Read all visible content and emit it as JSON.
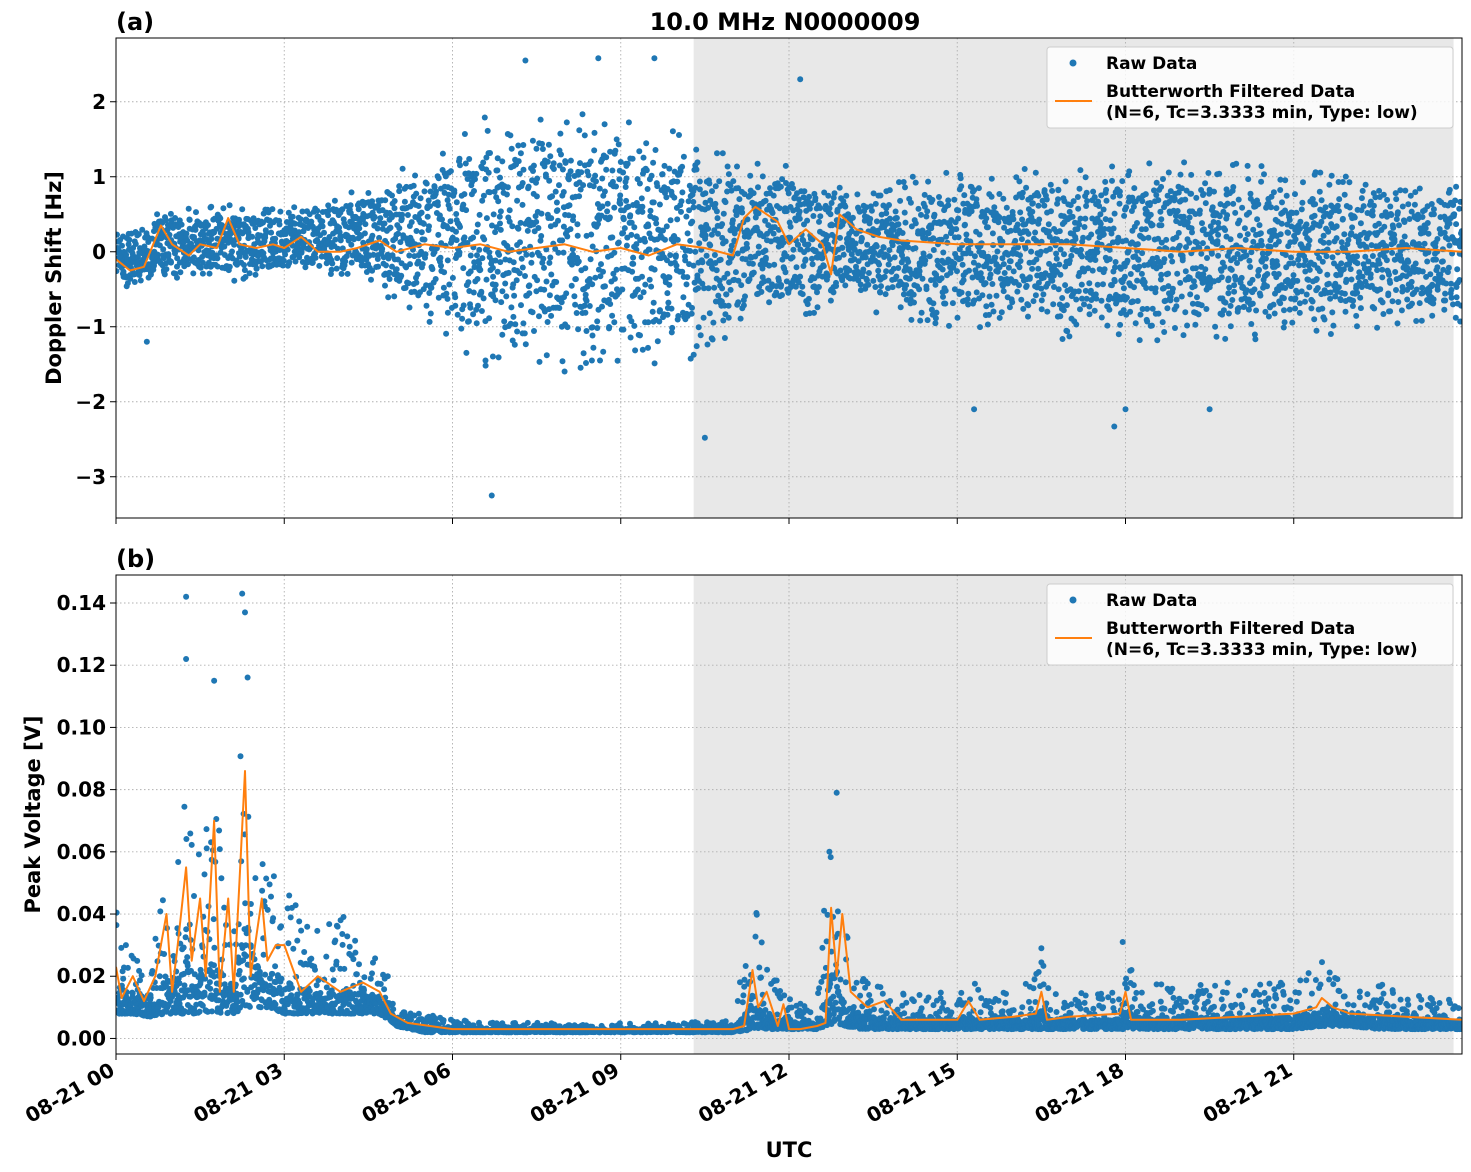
{
  "figure": {
    "title": "10.0 MHz N0000009",
    "xlabel": "UTC"
  },
  "chart_data": [
    {
      "type": "scatter",
      "panel_label": "(a)",
      "ylabel": "Doppler Shift [Hz]",
      "xlim_hours": [
        0,
        24
      ],
      "ylim": [
        -3.55,
        2.85
      ],
      "yticks": [
        -3,
        -2,
        -1,
        0,
        1,
        2
      ],
      "ytick_labels": [
        "−3",
        "−2",
        "−1",
        "0",
        "1",
        "2"
      ],
      "xticks_hours": [
        0,
        3,
        6,
        9,
        12,
        15,
        18,
        21
      ],
      "xtick_labels": [
        "08-21 00",
        "08-21 03",
        "08-21 06",
        "08-21 09",
        "08-21 12",
        "08-21 15",
        "08-21 18",
        "08-21 21"
      ],
      "grid": true,
      "shaded_interval_hours": [
        10.3,
        23.85
      ],
      "legend_placement": "top-right",
      "series": [
        {
          "name": "Raw Data",
          "kind": "scatter",
          "color": "#1f77b4",
          "envelope": {
            "x": [
              0,
              0.5,
              0.8,
              1.0,
              1.5,
              2.0,
              2.5,
              3.0,
              3.5,
              4.0,
              4.5,
              5.0,
              5.5,
              6.0,
              6.5,
              7.0,
              7.5,
              8.0,
              8.5,
              9.0,
              9.5,
              10.0,
              10.5,
              11.0,
              11.3,
              11.5,
              12.0,
              12.5,
              12.7,
              13.0,
              14.0,
              15.0,
              16.0,
              17.0,
              18.0,
              19.0,
              20.0,
              21.0,
              22.0,
              23.0,
              24.0
            ],
            "upper": [
              0.35,
              0.4,
              0.55,
              0.65,
              0.55,
              0.7,
              0.55,
              0.6,
              0.65,
              0.8,
              0.85,
              1.1,
              1.3,
              1.6,
              1.8,
              1.9,
              2.0,
              1.9,
              1.9,
              1.85,
              1.7,
              1.7,
              1.6,
              1.5,
              1.2,
              1.2,
              1.2,
              1.0,
              1.0,
              0.8,
              1.0,
              1.2,
              1.1,
              1.2,
              1.2,
              1.2,
              1.2,
              1.1,
              1.1,
              1.0,
              1.0
            ],
            "lower": [
              -0.45,
              -0.55,
              -0.5,
              -0.35,
              -0.35,
              -0.4,
              -0.35,
              -0.35,
              -0.3,
              -0.35,
              -0.4,
              -0.7,
              -1.0,
              -1.3,
              -1.5,
              -1.6,
              -1.6,
              -1.6,
              -1.6,
              -1.55,
              -1.5,
              -1.45,
              -1.4,
              -1.3,
              -1.0,
              -0.9,
              -0.9,
              -0.9,
              -0.9,
              -0.7,
              -0.9,
              -1.1,
              -1.0,
              -1.2,
              -1.2,
              -1.2,
              -1.2,
              -1.1,
              -1.1,
              -1.0,
              -1.0
            ]
          },
          "notable_points": [
            {
              "x": 0.55,
              "y": -1.2
            },
            {
              "x": 6.7,
              "y": -3.25
            },
            {
              "x": 7.3,
              "y": 2.55
            },
            {
              "x": 8.6,
              "y": 2.58
            },
            {
              "x": 9.6,
              "y": 2.58
            },
            {
              "x": 10.5,
              "y": -2.48
            },
            {
              "x": 12.2,
              "y": 2.3
            },
            {
              "x": 15.3,
              "y": -2.1
            },
            {
              "x": 17.8,
              "y": -2.33
            },
            {
              "x": 18.0,
              "y": -2.1
            },
            {
              "x": 19.5,
              "y": -2.1
            }
          ]
        },
        {
          "name": "Butterworth Filtered Data\n(N=6, Tc=3.3333 min, Type: low)",
          "kind": "line",
          "color": "#ff7f0e",
          "x": [
            0,
            0.25,
            0.5,
            0.8,
            1.0,
            1.3,
            1.5,
            1.8,
            2.0,
            2.2,
            2.5,
            2.8,
            3.0,
            3.3,
            3.6,
            4.0,
            4.3,
            4.7,
            5.0,
            5.5,
            6.0,
            6.5,
            7.0,
            7.5,
            8.0,
            8.5,
            9.0,
            9.5,
            10.0,
            10.5,
            11.0,
            11.2,
            11.4,
            11.6,
            11.8,
            12.0,
            12.3,
            12.6,
            12.75,
            12.9,
            13.2,
            13.6,
            14.0,
            15.0,
            16.0,
            17.0,
            18.0,
            19.0,
            20.0,
            21.0,
            22.0,
            23.0,
            24.0
          ],
          "y": [
            -0.1,
            -0.25,
            -0.2,
            0.35,
            0.1,
            -0.05,
            0.1,
            0.05,
            0.45,
            0.1,
            0.05,
            0.1,
            0.05,
            0.2,
            0.0,
            0.0,
            0.05,
            0.15,
            0.0,
            0.1,
            0.05,
            0.1,
            0.0,
            0.05,
            0.1,
            0.0,
            0.05,
            -0.05,
            0.1,
            0.05,
            -0.05,
            0.45,
            0.6,
            0.5,
            0.4,
            0.1,
            0.3,
            0.1,
            -0.3,
            0.5,
            0.3,
            0.2,
            0.15,
            0.1,
            0.1,
            0.1,
            0.05,
            0.0,
            0.05,
            0.0,
            0.0,
            0.05,
            0.0
          ]
        }
      ]
    },
    {
      "type": "scatter",
      "panel_label": "(b)",
      "ylabel": "Peak Voltage [V]",
      "xlim_hours": [
        0,
        24
      ],
      "ylim": [
        -0.005,
        0.149
      ],
      "yticks": [
        0,
        0.02,
        0.04,
        0.06,
        0.08,
        0.1,
        0.12,
        0.14
      ],
      "ytick_labels": [
        "0.00",
        "0.02",
        "0.04",
        "0.06",
        "0.08",
        "0.10",
        "0.12",
        "0.14"
      ],
      "xticks_hours": [
        0,
        3,
        6,
        9,
        12,
        15,
        18,
        21
      ],
      "xtick_labels": [
        "08-21 00",
        "08-21 03",
        "08-21 06",
        "08-21 09",
        "08-21 12",
        "08-21 15",
        "08-21 18",
        "08-21 21"
      ],
      "grid": true,
      "shaded_interval_hours": [
        10.3,
        23.85
      ],
      "legend_placement": "top-right",
      "series": [
        {
          "name": "Raw Data",
          "kind": "scatter",
          "color": "#1f77b4",
          "envelope": {
            "x": [
              0,
              0.3,
              0.6,
              0.9,
              1.0,
              1.2,
              1.4,
              1.6,
              1.75,
              1.9,
              2.1,
              2.3,
              2.5,
              2.75,
              3.0,
              3.3,
              3.6,
              4.0,
              4.4,
              4.7,
              5.0,
              5.5,
              6.0,
              7.0,
              8.0,
              9.0,
              10.0,
              11.0,
              11.4,
              11.6,
              11.8,
              12.1,
              12.5,
              12.7,
              12.85,
              13.0,
              13.3,
              14.0,
              15.0,
              15.2,
              15.5,
              16.0,
              16.5,
              16.7,
              17.0,
              17.9,
              18.0,
              18.2,
              19.0,
              20.0,
              21.0,
              21.5,
              22.0,
              22.5,
              23.0,
              24.0
            ],
            "upper": [
              0.052,
              0.03,
              0.035,
              0.06,
              0.035,
              0.1,
              0.05,
              0.08,
              0.1,
              0.05,
              0.05,
              0.135,
              0.055,
              0.06,
              0.05,
              0.04,
              0.035,
              0.04,
              0.035,
              0.03,
              0.01,
              0.008,
              0.006,
              0.005,
              0.005,
              0.005,
              0.005,
              0.006,
              0.045,
              0.025,
              0.018,
              0.012,
              0.01,
              0.06,
              0.077,
              0.035,
              0.02,
              0.015,
              0.015,
              0.02,
              0.015,
              0.015,
              0.028,
              0.015,
              0.015,
              0.015,
              0.03,
              0.017,
              0.018,
              0.018,
              0.018,
              0.025,
              0.015,
              0.018,
              0.014,
              0.013
            ],
            "lower": [
              0.008,
              0.008,
              0.007,
              0.008,
              0.008,
              0.008,
              0.008,
              0.008,
              0.008,
              0.008,
              0.008,
              0.01,
              0.01,
              0.01,
              0.008,
              0.008,
              0.008,
              0.008,
              0.008,
              0.008,
              0.004,
              0.002,
              0.002,
              0.002,
              0.002,
              0.002,
              0.002,
              0.002,
              0.003,
              0.003,
              0.003,
              0.003,
              0.003,
              0.004,
              0.005,
              0.004,
              0.003,
              0.003,
              0.003,
              0.003,
              0.003,
              0.003,
              0.003,
              0.003,
              0.003,
              0.003,
              0.003,
              0.003,
              0.003,
              0.003,
              0.003,
              0.004,
              0.004,
              0.003,
              0.003,
              0.003
            ]
          },
          "notable_points": [
            {
              "x": 1.25,
              "y": 0.142
            },
            {
              "x": 1.25,
              "y": 0.122
            },
            {
              "x": 1.75,
              "y": 0.115
            },
            {
              "x": 2.25,
              "y": 0.143
            },
            {
              "x": 2.3,
              "y": 0.137
            },
            {
              "x": 12.85,
              "y": 0.079
            },
            {
              "x": 16.5,
              "y": 0.029
            },
            {
              "x": 17.95,
              "y": 0.031
            }
          ]
        },
        {
          "name": "Butterworth Filtered Data\n(N=6, Tc=3.3333 min, Type: low)",
          "kind": "line",
          "color": "#ff7f0e",
          "x": [
            0,
            0.1,
            0.3,
            0.5,
            0.7,
            0.9,
            1.0,
            1.1,
            1.25,
            1.35,
            1.5,
            1.6,
            1.75,
            1.85,
            2.0,
            2.1,
            2.2,
            2.3,
            2.4,
            2.6,
            2.7,
            2.85,
            3.0,
            3.3,
            3.6,
            4.0,
            4.4,
            4.7,
            4.9,
            5.2,
            5.6,
            6.0,
            6.5,
            7.0,
            8.0,
            9.0,
            10.0,
            11.0,
            11.2,
            11.35,
            11.45,
            11.6,
            11.8,
            11.9,
            12.0,
            12.2,
            12.5,
            12.65,
            12.75,
            12.85,
            12.95,
            13.1,
            13.4,
            13.7,
            14.0,
            15.0,
            15.2,
            15.4,
            16.0,
            16.4,
            16.5,
            16.6,
            17.0,
            17.9,
            18.0,
            18.1,
            19.0,
            20.0,
            21.0,
            21.4,
            21.5,
            21.7,
            22.0,
            23.0,
            24.0
          ],
          "y": [
            0.023,
            0.013,
            0.02,
            0.012,
            0.02,
            0.04,
            0.015,
            0.03,
            0.055,
            0.025,
            0.045,
            0.02,
            0.07,
            0.015,
            0.045,
            0.015,
            0.05,
            0.086,
            0.02,
            0.045,
            0.025,
            0.03,
            0.03,
            0.015,
            0.02,
            0.015,
            0.018,
            0.015,
            0.008,
            0.005,
            0.004,
            0.003,
            0.003,
            0.003,
            0.003,
            0.003,
            0.003,
            0.003,
            0.004,
            0.022,
            0.01,
            0.015,
            0.004,
            0.011,
            0.003,
            0.003,
            0.004,
            0.005,
            0.042,
            0.02,
            0.04,
            0.015,
            0.01,
            0.012,
            0.006,
            0.006,
            0.012,
            0.006,
            0.007,
            0.008,
            0.015,
            0.006,
            0.007,
            0.008,
            0.015,
            0.006,
            0.006,
            0.007,
            0.008,
            0.01,
            0.013,
            0.01,
            0.008,
            0.007,
            0.006
          ]
        }
      ]
    }
  ]
}
